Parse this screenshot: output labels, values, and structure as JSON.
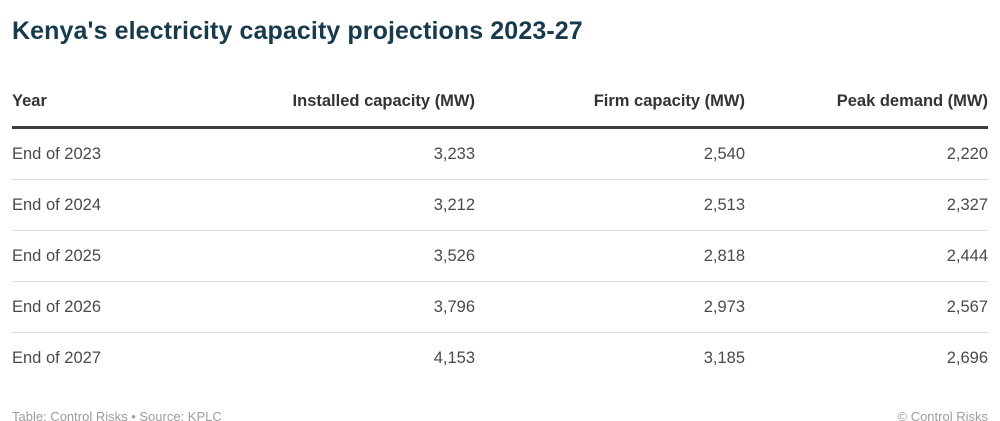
{
  "title": "Kenya's electricity capacity projections 2023-27",
  "table": {
    "columns": [
      "Year",
      "Installed capacity (MW)",
      "Firm capacity (MW)",
      "Peak demand (MW)"
    ],
    "rows": [
      {
        "year": "End of 2023",
        "installed": "3,233",
        "firm": "2,540",
        "peak": "2,220"
      },
      {
        "year": "End of 2024",
        "installed": "3,212",
        "firm": "2,513",
        "peak": "2,327"
      },
      {
        "year": "End of 2025",
        "installed": "3,526",
        "firm": "2,818",
        "peak": "2,444"
      },
      {
        "year": "End of 2026",
        "installed": "3,796",
        "firm": "2,973",
        "peak": "2,567"
      },
      {
        "year": "End of 2027",
        "installed": "4,153",
        "firm": "3,185",
        "peak": "2,696"
      }
    ]
  },
  "footer": {
    "left": "Table: Control Risks • Source: KPLC",
    "right": "© Control Risks"
  },
  "colors": {
    "title": "#173a4c",
    "header_text": "#333333",
    "header_rule": "#3c3c3c",
    "body_text": "#4a4a4a",
    "row_separator": "#dcdcdc",
    "footer_text": "#9c9c9c",
    "background": "#ffffff"
  },
  "chart_data": {
    "type": "table",
    "title": "Kenya's electricity capacity projections 2023-27",
    "categories": [
      "End of 2023",
      "End of 2024",
      "End of 2025",
      "End of 2026",
      "End of 2027"
    ],
    "series": [
      {
        "name": "Installed capacity (MW)",
        "values": [
          3233,
          3212,
          3526,
          3796,
          4153
        ]
      },
      {
        "name": "Firm capacity (MW)",
        "values": [
          2540,
          2513,
          2818,
          2973,
          3185
        ]
      },
      {
        "name": "Peak demand (MW)",
        "values": [
          2220,
          2327,
          2444,
          2567,
          2696
        ]
      }
    ],
    "source": "Table: Control Risks • Source: KPLC",
    "attribution": "© Control Risks"
  }
}
